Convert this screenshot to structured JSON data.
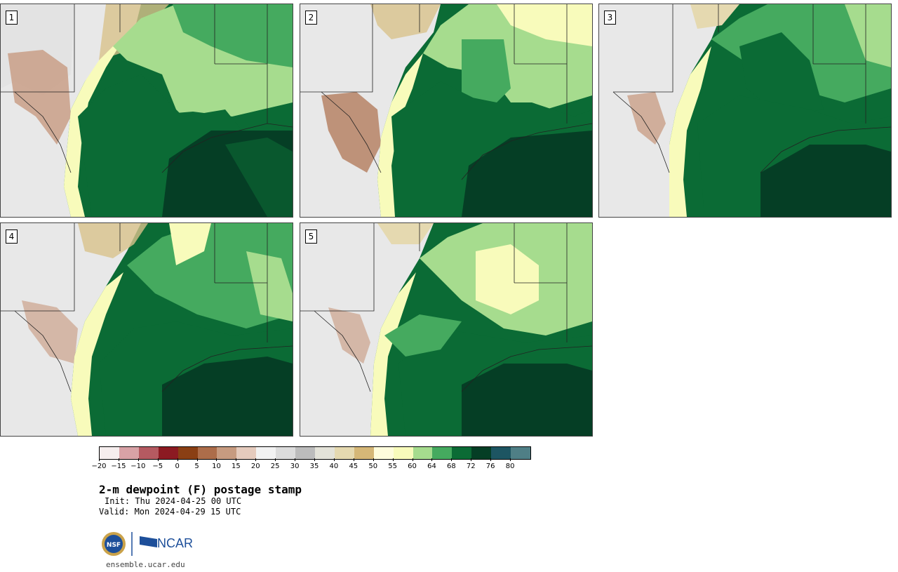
{
  "panels": [
    {
      "label": "1"
    },
    {
      "label": "2"
    },
    {
      "label": "3"
    },
    {
      "label": "4"
    },
    {
      "label": "5"
    }
  ],
  "colorbar": {
    "colors": [
      "#f6eeee",
      "#d8a2a6",
      "#b55a61",
      "#8c1a22",
      "#8a3f14",
      "#ad6d4a",
      "#c79b80",
      "#e5cbbd",
      "#f2f2f2",
      "#dcdcdc",
      "#bcbcbc",
      "#e4e3d9",
      "#e5d9b0",
      "#d5b777",
      "#fefcdc",
      "#f8fbbb",
      "#a6dc8e",
      "#45aa5f",
      "#0b6b35",
      "#053e25",
      "#1d5562",
      "#4f7f86"
    ],
    "tick_labels": [
      "−20",
      "−15",
      "−10",
      "−5",
      "0",
      "5",
      "10",
      "15",
      "20",
      "25",
      "30",
      "35",
      "40",
      "45",
      "50",
      "55",
      "60",
      "64",
      "68",
      "72",
      "76",
      "80"
    ]
  },
  "title": "2-m dewpoint (F) postage stamp",
  "init": "Init: Thu 2024-04-25 00 UTC",
  "valid": "Valid: Mon 2024-04-29 15 UTC",
  "logos": {
    "left": "NSF",
    "right": "NCAR"
  },
  "url": "ensemble.ucar.edu"
}
